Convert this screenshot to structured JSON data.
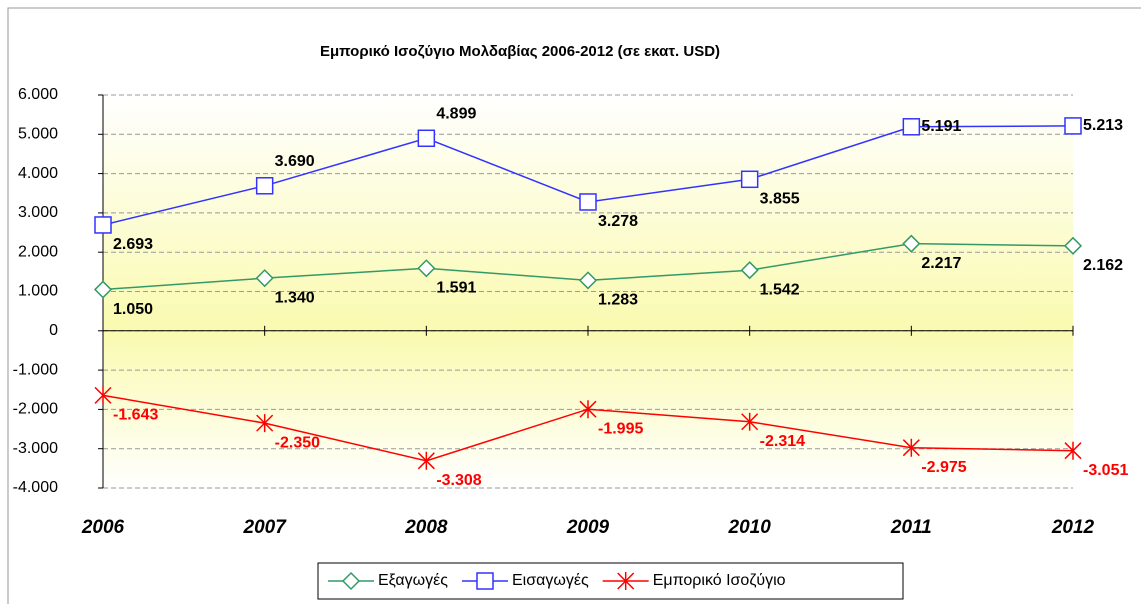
{
  "chart_data": {
    "type": "line",
    "title": "Εμπορικό Ισοζύγιο Μολδαβίας 2006-2012 (σε εκατ. USD)",
    "categories": [
      "2006",
      "2007",
      "2008",
      "2009",
      "2010",
      "2011",
      "2012"
    ],
    "series": [
      {
        "name": "Εξαγωγές",
        "color": "#339966",
        "marker": "diamond",
        "values": [
          1050,
          1340,
          1591,
          1283,
          1542,
          2217,
          2162
        ],
        "value_labels": [
          "1.050",
          "1.340",
          "1.591",
          "1.283",
          "1.542",
          "2.217",
          "2.162"
        ]
      },
      {
        "name": "Εισαγωγές",
        "color": "#3333ff",
        "marker": "square",
        "values": [
          2693,
          3690,
          4899,
          3278,
          3855,
          5191,
          5213
        ],
        "value_labels": [
          "2.693",
          "3.690",
          "4.899",
          "3.278",
          "3.855",
          "5.191",
          "5.213"
        ]
      },
      {
        "name": "Εμπορικό Ισοζύγιο",
        "color": "#ff0000",
        "marker": "star",
        "values": [
          -1643,
          -2350,
          -3308,
          -1995,
          -2314,
          -2975,
          -3051
        ],
        "value_labels": [
          "-1.643",
          "-2.350",
          "-3.308",
          "-1.995",
          "-2.314",
          "-2.975",
          "-3.051"
        ]
      }
    ],
    "ylim": [
      -4000,
      6000
    ],
    "yticks": [
      {
        "value": -4000,
        "label": "-4.000"
      },
      {
        "value": -3000,
        "label": "-3.000"
      },
      {
        "value": -2000,
        "label": "-2.000"
      },
      {
        "value": -1000,
        "label": "-1.000"
      },
      0,
      {
        "value": 1000,
        "label": "1.000"
      },
      {
        "value": 2000,
        "label": "2.000"
      },
      {
        "value": 3000,
        "label": "3.000"
      },
      {
        "value": 4000,
        "label": "4.000"
      },
      {
        "value": 5000,
        "label": "5.000"
      },
      {
        "value": 6000,
        "label": "6.000"
      }
    ],
    "grid": true,
    "legend": "bottom"
  }
}
